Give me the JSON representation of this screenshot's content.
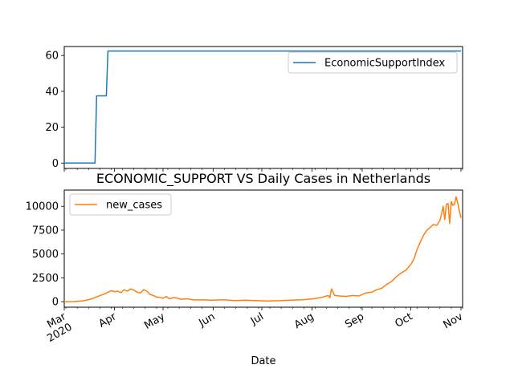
{
  "figure": {
    "title": "ECONOMIC_SUPPORT VS Daily Cases in Netherlands",
    "xlabel": "Date"
  },
  "chart_data": [
    {
      "type": "line",
      "x": [
        "2020-03-01",
        "2020-03-20",
        "2020-03-21",
        "2020-03-27",
        "2020-03-28",
        "2020-11-01"
      ],
      "series": [
        {
          "name": "EconomicSupportIndex",
          "color": "#1f77b4",
          "values": [
            0,
            0,
            37.5,
            37.5,
            62.5,
            62.5
          ]
        }
      ],
      "xlim": [
        "2020-03-01",
        "2020-11-02"
      ],
      "ylim": [
        -3,
        65
      ],
      "yticks": [
        0,
        20,
        40,
        60
      ],
      "xtick_labels_shown": false,
      "legend": "upper right",
      "grid": false
    },
    {
      "type": "line",
      "x": [
        "2020-03-01",
        "2020-03-07",
        "2020-03-12",
        "2020-03-15",
        "2020-03-18",
        "2020-03-21",
        "2020-03-24",
        "2020-03-27",
        "2020-03-30",
        "2020-04-01",
        "2020-04-03",
        "2020-04-05",
        "2020-04-07",
        "2020-04-09",
        "2020-04-11",
        "2020-04-13",
        "2020-04-15",
        "2020-04-17",
        "2020-04-19",
        "2020-04-21",
        "2020-04-23",
        "2020-04-25",
        "2020-04-27",
        "2020-04-29",
        "2020-05-01",
        "2020-05-03",
        "2020-05-05",
        "2020-05-08",
        "2020-05-12",
        "2020-05-16",
        "2020-05-20",
        "2020-05-25",
        "2020-05-31",
        "2020-06-07",
        "2020-06-14",
        "2020-06-21",
        "2020-06-28",
        "2020-07-05",
        "2020-07-12",
        "2020-07-19",
        "2020-07-26",
        "2020-08-02",
        "2020-08-07",
        "2020-08-11",
        "2020-08-12",
        "2020-08-13",
        "2020-08-15",
        "2020-08-18",
        "2020-08-22",
        "2020-08-26",
        "2020-08-30",
        "2020-09-03",
        "2020-09-07",
        "2020-09-10",
        "2020-09-13",
        "2020-09-16",
        "2020-09-19",
        "2020-09-22",
        "2020-09-25",
        "2020-09-28",
        "2020-10-01",
        "2020-10-03",
        "2020-10-05",
        "2020-10-07",
        "2020-10-09",
        "2020-10-11",
        "2020-10-13",
        "2020-10-15",
        "2020-10-17",
        "2020-10-19",
        "2020-10-20",
        "2020-10-21",
        "2020-10-22",
        "2020-10-23",
        "2020-10-24",
        "2020-10-25",
        "2020-10-26",
        "2020-10-27",
        "2020-10-28",
        "2020-10-29",
        "2020-10-30",
        "2020-10-31",
        "2020-11-01"
      ],
      "series": [
        {
          "name": "new_cases",
          "color": "#ff7f0e",
          "values": [
            0,
            10,
            80,
            170,
            300,
            500,
            700,
            900,
            1150,
            1050,
            1100,
            950,
            1250,
            1100,
            1350,
            1200,
            1000,
            900,
            1250,
            1100,
            750,
            650,
            500,
            450,
            350,
            550,
            300,
            450,
            250,
            300,
            180,
            200,
            150,
            200,
            120,
            150,
            100,
            80,
            100,
            150,
            200,
            300,
            450,
            650,
            400,
            1350,
            650,
            600,
            550,
            650,
            600,
            900,
            1000,
            1250,
            1400,
            1800,
            2100,
            2600,
            3000,
            3300,
            3900,
            4500,
            5500,
            6300,
            7000,
            7500,
            7800,
            8100,
            8000,
            8500,
            9200,
            10000,
            8600,
            10200,
            10300,
            8200,
            10500,
            10100,
            10200,
            11000,
            10300,
            9500,
            8800
          ]
        }
      ],
      "xlim": [
        "2020-03-01",
        "2020-11-02"
      ],
      "ylim": [
        -580,
        11700
      ],
      "yticks": [
        0,
        2500,
        5000,
        7500,
        10000
      ],
      "xtick_labels": [
        "Mar\n2020",
        "Apr",
        "May",
        "Jun",
        "Jul",
        "Aug",
        "Sep",
        "Oct",
        "Nov"
      ],
      "legend": "upper left",
      "grid": false
    }
  ]
}
